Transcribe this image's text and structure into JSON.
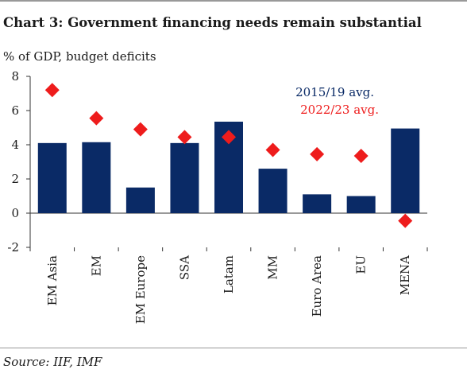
{
  "title": "Chart 3:  Government financing needs remain substantial",
  "unit_label": "% of GDP, budget deficits",
  "source": "Source:  IIF, IMF",
  "chart_data": {
    "type": "bar",
    "categories": [
      "EM Asia",
      "EM",
      "EM Europe",
      "SSA",
      "Latam",
      "MM",
      "Euro Area",
      "EU",
      "MENA"
    ],
    "series": [
      {
        "name": "2015/19 avg.",
        "mark": "bar",
        "color": "#0a2a66",
        "values": [
          4.1,
          4.15,
          1.5,
          4.1,
          5.35,
          2.6,
          1.1,
          1.0,
          4.95
        ]
      },
      {
        "name": "2022/23 avg.",
        "mark": "diamond",
        "color": "#ee1c1c",
        "values": [
          7.2,
          5.55,
          4.9,
          4.45,
          4.45,
          3.7,
          3.45,
          3.35,
          -0.45
        ]
      }
    ],
    "ylim": [
      -2,
      8
    ],
    "yticks": [
      "-2",
      "0",
      "2",
      "4",
      "6",
      "8"
    ],
    "legend_position": "top-right",
    "grid": false
  }
}
